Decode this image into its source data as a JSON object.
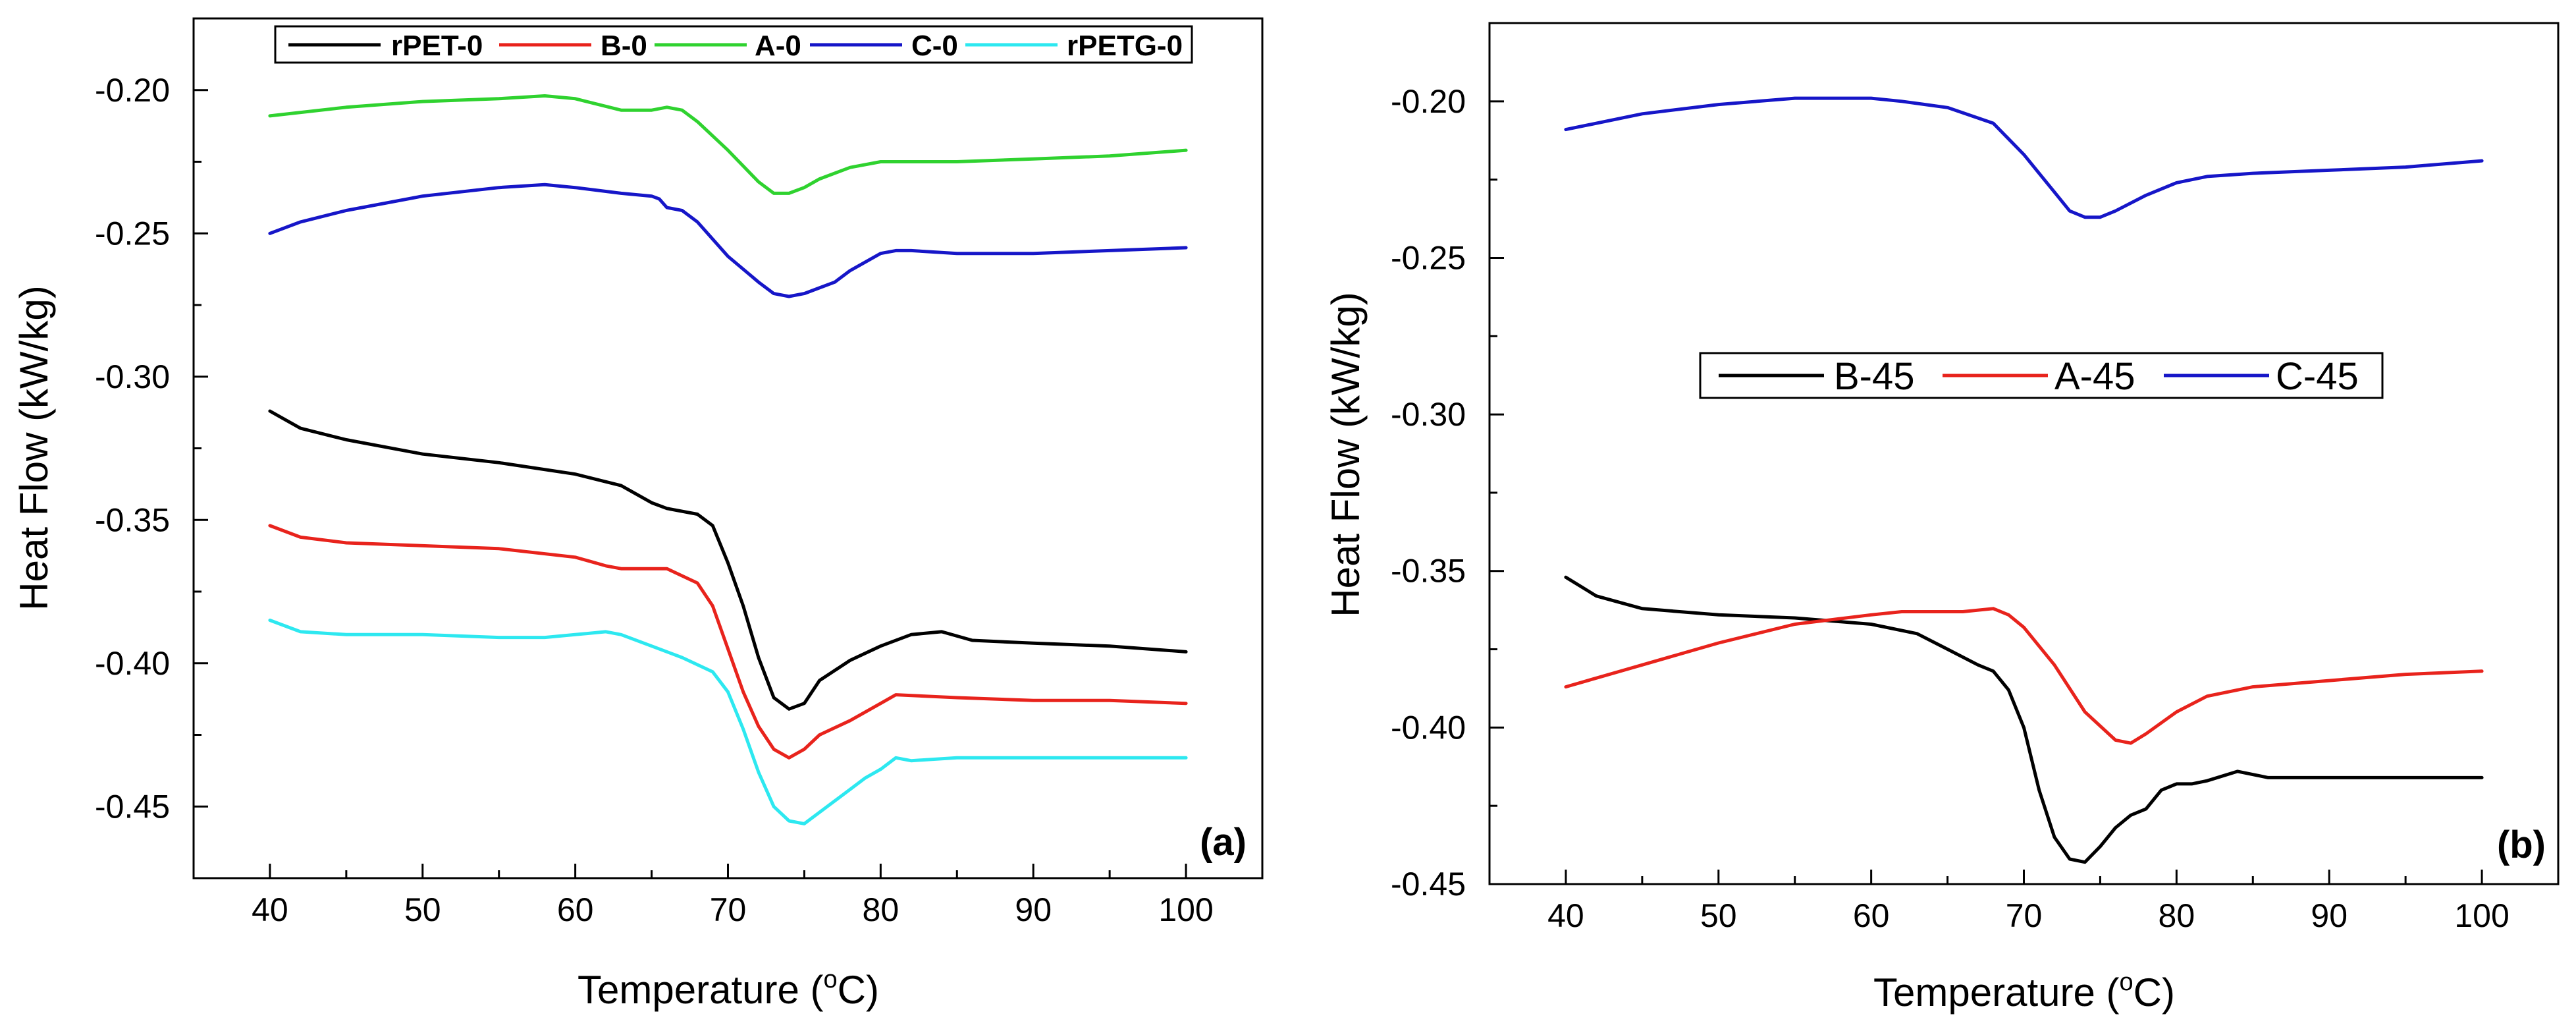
{
  "chart_data": [
    {
      "type": "line",
      "panel_label": "(a)",
      "title": "",
      "xlabel": "Temperature (",
      "xlabel_sup": "o",
      "xlabel_end": "C)",
      "ylabel": "Heat Flow (kW/kg)",
      "xlim": [
        35,
        105
      ],
      "ylim": [
        -0.475,
        -0.175
      ],
      "xticks": [
        40,
        50,
        60,
        70,
        80,
        90,
        100
      ],
      "xtick_labels": [
        "40",
        "50",
        "60",
        "70",
        "80",
        "90",
        "100"
      ],
      "yticks": [
        -0.45,
        -0.4,
        -0.35,
        -0.3,
        -0.25,
        -0.2
      ],
      "ytick_labels": [
        "-0.45",
        "-0.40",
        "-0.35",
        "-0.30",
        "-0.25",
        "-0.20"
      ],
      "legend_position": "top",
      "series": [
        {
          "name": "rPET-0",
          "color": "#000000",
          "x": [
            40,
            42,
            45,
            50,
            55,
            60,
            63,
            65,
            66,
            68,
            69,
            70,
            71,
            72,
            73,
            74,
            75,
            76,
            78,
            80,
            82,
            84,
            86,
            90,
            95,
            100
          ],
          "y": [
            -0.312,
            -0.318,
            -0.322,
            -0.327,
            -0.33,
            -0.334,
            -0.338,
            -0.344,
            -0.346,
            -0.348,
            -0.352,
            -0.365,
            -0.38,
            -0.398,
            -0.412,
            -0.416,
            -0.414,
            -0.406,
            -0.399,
            -0.394,
            -0.39,
            -0.389,
            -0.392,
            -0.393,
            -0.394,
            -0.396
          ]
        },
        {
          "name": "B-0",
          "color": "#e8231c",
          "x": [
            40,
            42,
            45,
            50,
            55,
            60,
            62,
            63,
            65,
            66,
            68,
            69,
            70,
            71,
            72,
            73,
            74,
            75,
            76,
            78,
            80,
            81,
            85,
            90,
            95,
            100
          ],
          "y": [
            -0.352,
            -0.356,
            -0.358,
            -0.359,
            -0.36,
            -0.363,
            -0.366,
            -0.367,
            -0.367,
            -0.367,
            -0.372,
            -0.38,
            -0.395,
            -0.41,
            -0.422,
            -0.43,
            -0.433,
            -0.43,
            -0.425,
            -0.42,
            -0.414,
            -0.411,
            -0.412,
            -0.413,
            -0.413,
            -0.414
          ]
        },
        {
          "name": "A-0",
          "color": "#2fd22f",
          "x": [
            40,
            45,
            50,
            55,
            58,
            60,
            63,
            65,
            66,
            67,
            68,
            70,
            72,
            73,
            74,
            75,
            76,
            78,
            80,
            82,
            85,
            90,
            95,
            100
          ],
          "y": [
            -0.209,
            -0.206,
            -0.204,
            -0.203,
            -0.202,
            -0.203,
            -0.207,
            -0.207,
            -0.206,
            -0.207,
            -0.211,
            -0.221,
            -0.232,
            -0.236,
            -0.236,
            -0.234,
            -0.231,
            -0.227,
            -0.225,
            -0.225,
            -0.225,
            -0.224,
            -0.223,
            -0.221
          ]
        },
        {
          "name": "C-0",
          "color": "#1616c8",
          "x": [
            40,
            42,
            45,
            50,
            55,
            58,
            60,
            63,
            65,
            65.5,
            66,
            67,
            68,
            70,
            72,
            73,
            74,
            75,
            76,
            77,
            78,
            80,
            81,
            82,
            85,
            90,
            95,
            100
          ],
          "y": [
            -0.25,
            -0.246,
            -0.242,
            -0.237,
            -0.234,
            -0.233,
            -0.234,
            -0.236,
            -0.237,
            -0.238,
            -0.241,
            -0.242,
            -0.246,
            -0.258,
            -0.267,
            -0.271,
            -0.272,
            -0.271,
            -0.269,
            -0.267,
            -0.263,
            -0.257,
            -0.256,
            -0.256,
            -0.257,
            -0.257,
            -0.256,
            -0.255
          ]
        },
        {
          "name": "rPETG-0",
          "color": "#2de8f0",
          "x": [
            40,
            42,
            45,
            50,
            55,
            58,
            60,
            62,
            63,
            65,
            67,
            69,
            70,
            71,
            72,
            73,
            74,
            75,
            76,
            77,
            78,
            79,
            80,
            81,
            82,
            85,
            90,
            95,
            100
          ],
          "y": [
            -0.385,
            -0.389,
            -0.39,
            -0.39,
            -0.391,
            -0.391,
            -0.39,
            -0.389,
            -0.39,
            -0.394,
            -0.398,
            -0.403,
            -0.41,
            -0.423,
            -0.438,
            -0.45,
            -0.455,
            -0.456,
            -0.452,
            -0.448,
            -0.444,
            -0.44,
            -0.437,
            -0.433,
            -0.434,
            -0.433,
            -0.433,
            -0.433,
            -0.433
          ]
        }
      ]
    },
    {
      "type": "line",
      "panel_label": "(b)",
      "title": "",
      "xlabel": "Temperature (",
      "xlabel_sup": "o",
      "xlabel_end": "C)",
      "ylabel": "Heat Flow (kW/kg)",
      "xlim": [
        35,
        105
      ],
      "ylim": [
        -0.45,
        -0.175
      ],
      "xticks": [
        40,
        50,
        60,
        70,
        80,
        90,
        100
      ],
      "xtick_labels": [
        "40",
        "50",
        "60",
        "70",
        "80",
        "90",
        "100"
      ],
      "yticks": [
        -0.45,
        -0.4,
        -0.35,
        -0.3,
        -0.25,
        -0.2
      ],
      "ytick_labels": [
        "-0.45",
        "-0.40",
        "-0.35",
        "-0.30",
        "-0.25",
        "-0.20"
      ],
      "legend_position": "center",
      "series": [
        {
          "name": "B-45",
          "color": "#000000",
          "x": [
            40,
            42,
            45,
            50,
            55,
            60,
            63,
            65,
            67,
            68,
            69,
            70,
            71,
            72,
            73,
            74,
            75,
            76,
            77,
            78,
            79,
            80,
            81,
            82,
            84,
            86,
            90,
            95,
            100
          ],
          "y": [
            -0.352,
            -0.358,
            -0.362,
            -0.364,
            -0.365,
            -0.367,
            -0.37,
            -0.375,
            -0.38,
            -0.382,
            -0.388,
            -0.4,
            -0.42,
            -0.435,
            -0.442,
            -0.443,
            -0.438,
            -0.432,
            -0.428,
            -0.426,
            -0.42,
            -0.418,
            -0.418,
            -0.417,
            -0.414,
            -0.416,
            -0.416,
            -0.416,
            -0.416
          ]
        },
        {
          "name": "A-45",
          "color": "#e8231c",
          "x": [
            40,
            45,
            50,
            55,
            60,
            62,
            64,
            66,
            68,
            69,
            70,
            72,
            74,
            76,
            77,
            78,
            80,
            82,
            85,
            90,
            95,
            100
          ],
          "y": [
            -0.387,
            -0.38,
            -0.373,
            -0.367,
            -0.364,
            -0.363,
            -0.363,
            -0.363,
            -0.362,
            -0.364,
            -0.368,
            -0.38,
            -0.395,
            -0.404,
            -0.405,
            -0.402,
            -0.395,
            -0.39,
            -0.387,
            -0.385,
            -0.383,
            -0.382
          ]
        },
        {
          "name": "C-45",
          "color": "#1616c8",
          "x": [
            40,
            45,
            50,
            55,
            58,
            60,
            62,
            65,
            68,
            70,
            72,
            73,
            74,
            75,
            76,
            78,
            80,
            82,
            85,
            90,
            95,
            100
          ],
          "y": [
            -0.209,
            -0.204,
            -0.201,
            -0.199,
            -0.199,
            -0.199,
            -0.2,
            -0.202,
            -0.207,
            -0.217,
            -0.229,
            -0.235,
            -0.237,
            -0.237,
            -0.235,
            -0.23,
            -0.226,
            -0.224,
            -0.223,
            -0.222,
            -0.221,
            -0.219
          ]
        }
      ]
    }
  ]
}
